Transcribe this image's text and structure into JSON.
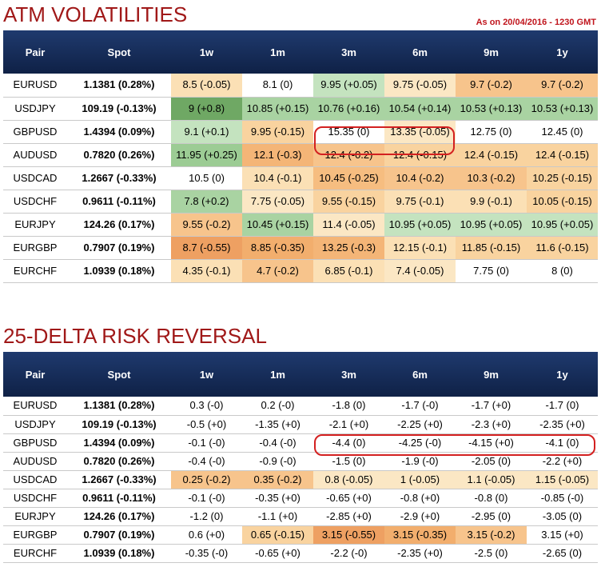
{
  "atm": {
    "title": "ATM VOLATILITIES",
    "as_of": "As on 20/04/2016 - 1230 GMT",
    "headers": [
      "Pair",
      "Spot",
      "1w",
      "1m",
      "3m",
      "6m",
      "9m",
      "1y"
    ],
    "rows": [
      {
        "pair": "EURUSD",
        "spot": "1.1381 (0.28%)",
        "cells": [
          {
            "v": "8.5 (-0.05)",
            "c": "#fbe0b5"
          },
          {
            "v": "8.1 (0)",
            "c": "#ffffff"
          },
          {
            "v": "9.95 (+0.05)",
            "c": "#c4e3bf"
          },
          {
            "v": "9.75 (-0.05)",
            "c": "#fbe7c4"
          },
          {
            "v": "9.7 (-0.2)",
            "c": "#f7c48c"
          },
          {
            "v": "9.7 (-0.2)",
            "c": "#f7c48c"
          }
        ]
      },
      {
        "pair": "USDJPY",
        "spot": "109.19 (-0.13%)",
        "cells": [
          {
            "v": "9 (+0.8)",
            "c": "#6fa864"
          },
          {
            "v": "10.85 (+0.15)",
            "c": "#a9d3a2"
          },
          {
            "v": "10.76 (+0.16)",
            "c": "#a9d3a2"
          },
          {
            "v": "10.54 (+0.14)",
            "c": "#a9d3a2"
          },
          {
            "v": "10.53 (+0.13)",
            "c": "#a9d3a2"
          },
          {
            "v": "10.53 (+0.13)",
            "c": "#a9d3a2"
          }
        ]
      },
      {
        "pair": "GBPUSD",
        "spot": "1.4394 (0.09%)",
        "cells": [
          {
            "v": "9.1 (+0.1)",
            "c": "#c4e3bf"
          },
          {
            "v": "9.95 (-0.15)",
            "c": "#f9d39f"
          },
          {
            "v": "15.35 (0)",
            "c": "#ffffff"
          },
          {
            "v": "13.35 (-0.05)",
            "c": "#fbe7c4"
          },
          {
            "v": "12.75 (0)",
            "c": "#ffffff"
          },
          {
            "v": "12.45 (0)",
            "c": "#ffffff"
          }
        ]
      },
      {
        "pair": "AUDUSD",
        "spot": "0.7820 (0.26%)",
        "cells": [
          {
            "v": "11.95 (+0.25)",
            "c": "#9ccc94"
          },
          {
            "v": "12.1 (-0.3)",
            "c": "#f4b577"
          },
          {
            "v": "12.4 (-0.2)",
            "c": "#f7c48c"
          },
          {
            "v": "12.4 (-0.15)",
            "c": "#f9d39f"
          },
          {
            "v": "12.4 (-0.15)",
            "c": "#f9d39f"
          },
          {
            "v": "12.4 (-0.15)",
            "c": "#f9d39f"
          }
        ]
      },
      {
        "pair": "USDCAD",
        "spot": "1.2667 (-0.33%)",
        "cells": [
          {
            "v": "10.5 (0)",
            "c": "#ffffff"
          },
          {
            "v": "10.4 (-0.1)",
            "c": "#fbe0b5"
          },
          {
            "v": "10.45 (-0.25)",
            "c": "#f6bd80"
          },
          {
            "v": "10.4 (-0.2)",
            "c": "#f7c48c"
          },
          {
            "v": "10.3 (-0.2)",
            "c": "#f7c48c"
          },
          {
            "v": "10.25 (-0.15)",
            "c": "#f9d39f"
          }
        ]
      },
      {
        "pair": "USDCHF",
        "spot": "0.9611 (-0.11%)",
        "cells": [
          {
            "v": "7.8 (+0.2)",
            "c": "#a9d3a2"
          },
          {
            "v": "7.75 (-0.05)",
            "c": "#fbe7c4"
          },
          {
            "v": "9.55 (-0.15)",
            "c": "#f9d39f"
          },
          {
            "v": "9.75 (-0.1)",
            "c": "#fbe0b5"
          },
          {
            "v": "9.9 (-0.1)",
            "c": "#fbe0b5"
          },
          {
            "v": "10.05 (-0.15)",
            "c": "#f9d39f"
          }
        ]
      },
      {
        "pair": "EURJPY",
        "spot": "124.26 (0.17%)",
        "cells": [
          {
            "v": "9.55 (-0.2)",
            "c": "#f7c48c"
          },
          {
            "v": "10.45 (+0.15)",
            "c": "#a9d3a2"
          },
          {
            "v": "11.4 (-0.05)",
            "c": "#fbe7c4"
          },
          {
            "v": "10.95 (+0.05)",
            "c": "#c4e3bf"
          },
          {
            "v": "10.95 (+0.05)",
            "c": "#c4e3bf"
          },
          {
            "v": "10.95 (+0.05)",
            "c": "#c4e3bf"
          }
        ]
      },
      {
        "pair": "EURGBP",
        "spot": "0.7907 (0.19%)",
        "cells": [
          {
            "v": "8.7 (-0.55)",
            "c": "#eea062"
          },
          {
            "v": "8.85 (-0.35)",
            "c": "#f2ae6d"
          },
          {
            "v": "13.25 (-0.3)",
            "c": "#f4b577"
          },
          {
            "v": "12.15 (-0.1)",
            "c": "#fbe0b5"
          },
          {
            "v": "11.85 (-0.15)",
            "c": "#f9d39f"
          },
          {
            "v": "11.6 (-0.15)",
            "c": "#f9d39f"
          }
        ]
      },
      {
        "pair": "EURCHF",
        "spot": "1.0939 (0.18%)",
        "cells": [
          {
            "v": "4.35 (-0.1)",
            "c": "#fbe0b5"
          },
          {
            "v": "4.7 (-0.2)",
            "c": "#f7c48c"
          },
          {
            "v": "6.85 (-0.1)",
            "c": "#fbe0b5"
          },
          {
            "v": "7.4 (-0.05)",
            "c": "#fbe7c4"
          },
          {
            "v": "7.75 (0)",
            "c": "#ffffff"
          },
          {
            "v": "8 (0)",
            "c": "#ffffff"
          }
        ]
      }
    ]
  },
  "rr": {
    "title": "25-DELTA RISK REVERSAL",
    "headers": [
      "Pair",
      "Spot",
      "1w",
      "1m",
      "3m",
      "6m",
      "9m",
      "1y"
    ],
    "rows": [
      {
        "pair": "EURUSD",
        "spot": "1.1381 (0.28%)",
        "cells": [
          {
            "v": "0.3 (-0)",
            "c": "#ffffff"
          },
          {
            "v": "0.2 (-0)",
            "c": "#ffffff"
          },
          {
            "v": "-1.8 (0)",
            "c": "#ffffff"
          },
          {
            "v": "-1.7 (-0)",
            "c": "#ffffff"
          },
          {
            "v": "-1.7 (+0)",
            "c": "#ffffff"
          },
          {
            "v": "-1.7 (0)",
            "c": "#ffffff"
          }
        ]
      },
      {
        "pair": "USDJPY",
        "spot": "109.19 (-0.13%)",
        "cells": [
          {
            "v": "-0.5 (+0)",
            "c": "#ffffff"
          },
          {
            "v": "-1.35 (+0)",
            "c": "#ffffff"
          },
          {
            "v": "-2.1 (+0)",
            "c": "#ffffff"
          },
          {
            "v": "-2.25 (+0)",
            "c": "#ffffff"
          },
          {
            "v": "-2.3 (+0)",
            "c": "#ffffff"
          },
          {
            "v": "-2.35 (+0)",
            "c": "#ffffff"
          }
        ]
      },
      {
        "pair": "GBPUSD",
        "spot": "1.4394 (0.09%)",
        "cells": [
          {
            "v": "-0.1 (-0)",
            "c": "#ffffff"
          },
          {
            "v": "-0.4 (-0)",
            "c": "#ffffff"
          },
          {
            "v": "-4.4 (0)",
            "c": "#ffffff"
          },
          {
            "v": "-4.25 (-0)",
            "c": "#ffffff"
          },
          {
            "v": "-4.15 (+0)",
            "c": "#ffffff"
          },
          {
            "v": "-4.1 (0)",
            "c": "#ffffff"
          }
        ]
      },
      {
        "pair": "AUDUSD",
        "spot": "0.7820 (0.26%)",
        "cells": [
          {
            "v": "-0.4 (-0)",
            "c": "#ffffff"
          },
          {
            "v": "-0.9 (-0)",
            "c": "#ffffff"
          },
          {
            "v": "-1.5 (0)",
            "c": "#ffffff"
          },
          {
            "v": "-1.9 (-0)",
            "c": "#ffffff"
          },
          {
            "v": "-2.05 (0)",
            "c": "#ffffff"
          },
          {
            "v": "-2.2 (+0)",
            "c": "#ffffff"
          }
        ]
      },
      {
        "pair": "USDCAD",
        "spot": "1.2667 (-0.33%)",
        "cells": [
          {
            "v": "0.25 (-0.2)",
            "c": "#f7c48c"
          },
          {
            "v": "0.35 (-0.2)",
            "c": "#f7c48c"
          },
          {
            "v": "0.8 (-0.05)",
            "c": "#fbe7c4"
          },
          {
            "v": "1 (-0.05)",
            "c": "#fbe7c4"
          },
          {
            "v": "1.1 (-0.05)",
            "c": "#fbe7c4"
          },
          {
            "v": "1.15 (-0.05)",
            "c": "#fbe7c4"
          }
        ]
      },
      {
        "pair": "USDCHF",
        "spot": "0.9611 (-0.11%)",
        "cells": [
          {
            "v": "-0.1 (-0)",
            "c": "#ffffff"
          },
          {
            "v": "-0.35 (+0)",
            "c": "#ffffff"
          },
          {
            "v": "-0.65 (+0)",
            "c": "#ffffff"
          },
          {
            "v": "-0.8 (+0)",
            "c": "#ffffff"
          },
          {
            "v": "-0.8 (0)",
            "c": "#ffffff"
          },
          {
            "v": "-0.85 (-0)",
            "c": "#ffffff"
          }
        ]
      },
      {
        "pair": "EURJPY",
        "spot": "124.26 (0.17%)",
        "cells": [
          {
            "v": "-1.2 (0)",
            "c": "#ffffff"
          },
          {
            "v": "-1.1 (+0)",
            "c": "#ffffff"
          },
          {
            "v": "-2.85 (+0)",
            "c": "#ffffff"
          },
          {
            "v": "-2.9 (+0)",
            "c": "#ffffff"
          },
          {
            "v": "-2.95 (0)",
            "c": "#ffffff"
          },
          {
            "v": "-3.05 (0)",
            "c": "#ffffff"
          }
        ]
      },
      {
        "pair": "EURGBP",
        "spot": "0.7907 (0.19%)",
        "cells": [
          {
            "v": "0.6 (+0)",
            "c": "#ffffff"
          },
          {
            "v": "0.65 (-0.15)",
            "c": "#f9d39f"
          },
          {
            "v": "3.15 (-0.55)",
            "c": "#eea062"
          },
          {
            "v": "3.15 (-0.35)",
            "c": "#f2ae6d"
          },
          {
            "v": "3.15 (-0.2)",
            "c": "#f7c48c"
          },
          {
            "v": "3.15 (+0)",
            "c": "#ffffff"
          }
        ]
      },
      {
        "pair": "EURCHF",
        "spot": "1.0939 (0.18%)",
        "cells": [
          {
            "v": "-0.35 (-0)",
            "c": "#ffffff"
          },
          {
            "v": "-0.65 (+0)",
            "c": "#ffffff"
          },
          {
            "v": "-2.2 (-0)",
            "c": "#ffffff"
          },
          {
            "v": "-2.35 (+0)",
            "c": "#ffffff"
          },
          {
            "v": "-2.5 (0)",
            "c": "#ffffff"
          },
          {
            "v": "-2.65 (0)",
            "c": "#ffffff"
          }
        ]
      }
    ]
  }
}
